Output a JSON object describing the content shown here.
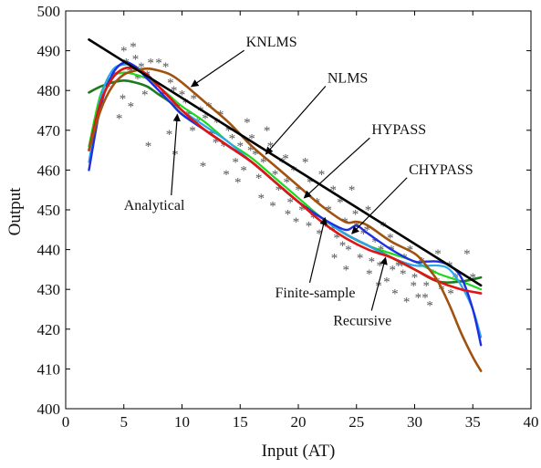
{
  "chart_data": {
    "type": "line",
    "title": "",
    "xlabel": "Input (AT)",
    "ylabel": "Output",
    "xlim": [
      0,
      40
    ],
    "ylim": [
      400,
      500
    ],
    "xticks": [
      0,
      5,
      10,
      15,
      20,
      25,
      30,
      35,
      40
    ],
    "yticks": [
      400,
      410,
      420,
      430,
      440,
      450,
      460,
      470,
      480,
      490,
      500
    ],
    "grid": false,
    "series": [
      {
        "name": "Analytical",
        "color": "#1dd81d",
        "stroke_width": 2.2,
        "x": [
          2,
          3,
          4,
          5,
          6,
          7,
          8,
          9,
          10,
          12,
          14,
          16,
          18,
          20,
          22,
          24,
          26,
          28,
          30,
          32,
          34,
          35.7
        ],
        "y": [
          466,
          479,
          483.5,
          484.5,
          484,
          483,
          481,
          478.5,
          476,
          472,
          467,
          463,
          458,
          453,
          448,
          444,
          441,
          439,
          437,
          434,
          432,
          430
        ]
      },
      {
        "name": "",
        "color": "#1e7a1e",
        "stroke_width": 2.6,
        "x": [
          2,
          3,
          4,
          5,
          6,
          7,
          8,
          9,
          10,
          12,
          14,
          16,
          18,
          20,
          22,
          24,
          26,
          28,
          30,
          32,
          34,
          35.7
        ],
        "y": [
          479.5,
          481,
          482,
          482.5,
          482,
          481,
          479,
          477,
          474,
          470,
          466,
          462,
          457,
          452,
          448,
          444,
          441,
          438,
          435,
          432,
          432,
          433
        ]
      },
      {
        "name": "HYPASS",
        "color": "#2aa6ee",
        "stroke_width": 2.2,
        "x": [
          2,
          3,
          4,
          5,
          6,
          7,
          8,
          9,
          10,
          12,
          14,
          16,
          18,
          20,
          22,
          24,
          26,
          28,
          30,
          32,
          33,
          34,
          35,
          35.7
        ],
        "y": [
          462,
          478,
          485,
          486.5,
          486,
          484,
          481,
          478,
          475,
          471,
          467,
          462,
          457,
          452,
          448,
          444,
          441,
          438,
          436,
          436,
          435,
          431,
          425,
          418
        ]
      },
      {
        "name": "CHYPASS",
        "color": "#1f2ee0",
        "stroke_width": 2.4,
        "x": [
          2,
          3,
          4,
          5,
          6,
          7,
          8,
          9,
          10,
          12,
          14,
          16,
          18,
          20,
          22,
          24,
          25,
          26,
          28,
          30,
          31,
          32,
          33,
          34,
          35,
          35.7
        ],
        "y": [
          460,
          476,
          484,
          487,
          486,
          483,
          480,
          477,
          474,
          470,
          466,
          462,
          457,
          452,
          448,
          445,
          446,
          444,
          440,
          437,
          437,
          437,
          436,
          433,
          425,
          416
        ]
      },
      {
        "name": "Recursive",
        "color": "#e01414",
        "stroke_width": 2.6,
        "x": [
          2,
          3,
          4,
          5,
          6,
          7,
          8,
          9,
          10,
          12,
          14,
          16,
          18,
          20,
          22,
          24,
          26,
          28,
          30,
          32,
          34,
          35.7
        ],
        "y": [
          465,
          477,
          483,
          485.5,
          485.5,
          484,
          481,
          478,
          475,
          470,
          466,
          462,
          457,
          452,
          447,
          443,
          440,
          438,
          435,
          432,
          430,
          429
        ]
      },
      {
        "name": "KNLMS",
        "color": "#a0520e",
        "stroke_width": 2.6,
        "x": [
          2,
          3,
          4,
          5,
          6,
          7,
          8,
          9,
          10,
          12,
          14,
          16,
          18,
          20,
          22,
          24,
          25,
          26,
          28,
          30,
          31,
          32,
          33,
          34,
          35,
          35.7
        ],
        "y": [
          465,
          475,
          481,
          484,
          485,
          485.5,
          485,
          484,
          482,
          477,
          472,
          466,
          461,
          456,
          451,
          447,
          447,
          446,
          442,
          439,
          436,
          432,
          426,
          419,
          413,
          409.5
        ]
      },
      {
        "name": "NLMS",
        "color": "#000000",
        "stroke_width": 2.6,
        "x": [
          2,
          35.7
        ],
        "y": [
          492.8,
          431
        ]
      }
    ],
    "scatter": {
      "marker": "*",
      "color": "#555555",
      "points": [
        [
          5,
          490
        ],
        [
          5.2,
          487
        ],
        [
          5.5,
          485
        ],
        [
          5.8,
          491
        ],
        [
          6,
          488
        ],
        [
          6.2,
          483
        ],
        [
          6.5,
          486
        ],
        [
          7,
          484
        ],
        [
          7.3,
          487
        ],
        [
          7.8,
          481
        ],
        [
          8,
          487
        ],
        [
          8.3,
          479
        ],
        [
          8.6,
          486
        ],
        [
          9,
          482
        ],
        [
          9.3,
          480
        ],
        [
          9.6,
          476
        ],
        [
          10,
          479
        ],
        [
          10.3,
          477
        ],
        [
          10.6,
          474
        ],
        [
          11,
          478
        ],
        [
          11.3,
          472
        ],
        [
          11.6,
          475
        ],
        [
          12,
          473
        ],
        [
          12.3,
          476
        ],
        [
          12.6,
          469
        ],
        [
          13,
          472
        ],
        [
          13.3,
          474
        ],
        [
          13.6,
          466
        ],
        [
          14,
          470
        ],
        [
          14.3,
          468
        ],
        [
          14.6,
          462
        ],
        [
          15,
          466
        ],
        [
          15.3,
          460
        ],
        [
          15.6,
          472
        ],
        [
          16,
          468
        ],
        [
          16.3,
          464
        ],
        [
          16.6,
          458
        ],
        [
          17,
          462
        ],
        [
          17.3,
          470
        ],
        [
          17.6,
          466
        ],
        [
          18,
          459
        ],
        [
          18.3,
          455
        ],
        [
          18.6,
          462
        ],
        [
          19,
          457
        ],
        [
          19.3,
          452
        ],
        [
          19.6,
          460
        ],
        [
          20,
          455
        ],
        [
          20.3,
          450
        ],
        [
          20.6,
          462
        ],
        [
          21,
          457
        ],
        [
          21.3,
          448
        ],
        [
          21.6,
          452
        ],
        [
          22,
          459
        ],
        [
          22.3,
          446
        ],
        [
          22.6,
          450
        ],
        [
          23,
          455
        ],
        [
          23.3,
          443
        ],
        [
          23.6,
          452
        ],
        [
          24,
          447
        ],
        [
          24.3,
          440
        ],
        [
          24.6,
          455
        ],
        [
          25,
          446
        ],
        [
          25.3,
          438
        ],
        [
          25.6,
          444
        ],
        [
          26,
          450
        ],
        [
          26.3,
          437
        ],
        [
          26.6,
          442
        ],
        [
          27,
          436
        ],
        [
          27.3,
          446
        ],
        [
          27.6,
          432
        ],
        [
          28,
          440
        ],
        [
          28.3,
          429
        ],
        [
          28.6,
          436
        ],
        [
          29,
          434
        ],
        [
          29.3,
          427
        ],
        [
          29.6,
          440
        ],
        [
          30,
          433
        ],
        [
          30.3,
          428
        ],
        [
          30.6,
          437
        ],
        [
          31,
          431
        ],
        [
          31.3,
          426
        ],
        [
          31.6,
          434
        ],
        [
          32,
          439
        ],
        [
          32.3,
          430
        ],
        [
          33,
          436
        ],
        [
          33.5,
          433
        ],
        [
          34.5,
          439
        ],
        [
          35,
          433
        ],
        [
          3.6,
          481
        ],
        [
          4.2,
          484
        ],
        [
          4.6,
          473
        ],
        [
          5.6,
          476
        ],
        [
          7.1,
          466
        ],
        [
          8.9,
          469
        ],
        [
          10.9,
          470
        ],
        [
          12.9,
          467
        ],
        [
          15.9,
          465
        ],
        [
          18.9,
          463
        ],
        [
          20.9,
          446
        ],
        [
          22.9,
          445
        ],
        [
          24.9,
          449
        ],
        [
          26.9,
          431
        ],
        [
          28.9,
          436
        ],
        [
          30.9,
          428
        ],
        [
          9.4,
          464
        ],
        [
          11.8,
          461
        ],
        [
          14.8,
          457
        ],
        [
          16.8,
          453
        ],
        [
          19.8,
          447
        ],
        [
          23.8,
          441
        ],
        [
          26.1,
          434
        ],
        [
          27.9,
          443
        ],
        [
          29.9,
          431
        ],
        [
          21.8,
          444
        ],
        [
          17.8,
          451
        ],
        [
          13.8,
          459
        ],
        [
          6.8,
          479
        ],
        [
          4.9,
          478
        ],
        [
          24.1,
          435
        ],
        [
          25.9,
          445
        ],
        [
          28.1,
          435
        ],
        [
          31.9,
          432
        ],
        [
          33.1,
          429
        ],
        [
          29.1,
          438
        ],
        [
          27.1,
          440
        ],
        [
          23.1,
          438
        ],
        [
          19.1,
          449
        ]
      ]
    },
    "annotations": [
      {
        "text": "KNLMS",
        "tx": 15.5,
        "ty": 491,
        "ax": 10.8,
        "ay": 481
      },
      {
        "text": "NLMS",
        "tx": 22.5,
        "ty": 482,
        "ax": 17.2,
        "ay": 464
      },
      {
        "text": "HYPASS",
        "tx": 26.3,
        "ty": 469,
        "ax": 20.5,
        "ay": 453
      },
      {
        "text": "CHYPASS",
        "tx": 29.5,
        "ty": 459,
        "ax": 24.6,
        "ay": 444
      },
      {
        "text": "Analytical",
        "tx": 5,
        "ty": 450,
        "ax": 9.6,
        "ay": 474
      },
      {
        "text": "Finite-sample",
        "tx": 18,
        "ty": 428,
        "ax": 22.3,
        "ay": 448
      },
      {
        "text": "Recursive",
        "tx": 23,
        "ty": 421,
        "ax": 27.5,
        "ay": 438
      }
    ]
  }
}
